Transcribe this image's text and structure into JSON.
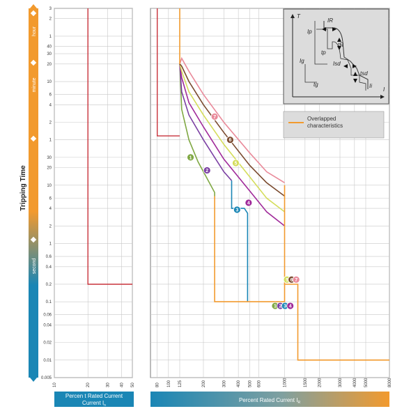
{
  "chart_data": {
    "type": "line",
    "ylabel": "Tripping Time",
    "y_scale": "log",
    "y_ticks": [
      {
        "label": "3",
        "unit": "hour"
      },
      {
        "label": "2",
        "unit": "hour"
      },
      {
        "label": "1",
        "unit": "hour"
      },
      {
        "label": "40",
        "unit": "minute"
      },
      {
        "label": "30",
        "unit": "minute"
      },
      {
        "label": "20",
        "unit": "minute"
      },
      {
        "label": "10",
        "unit": "minute"
      },
      {
        "label": "6",
        "unit": "minute"
      },
      {
        "label": "4",
        "unit": "minute"
      },
      {
        "label": "2",
        "unit": "minute"
      },
      {
        "label": "1",
        "unit": "minute"
      },
      {
        "label": "30",
        "unit": "second"
      },
      {
        "label": "20",
        "unit": "second"
      },
      {
        "label": "10",
        "unit": "second"
      },
      {
        "label": "6",
        "unit": "second"
      },
      {
        "label": "4",
        "unit": "second"
      },
      {
        "label": "2",
        "unit": "second"
      },
      {
        "label": "1",
        "unit": "second"
      },
      {
        "label": "0.6",
        "unit": "second"
      },
      {
        "label": "0.4",
        "unit": "second"
      },
      {
        "label": "0.2",
        "unit": "second"
      },
      {
        "label": "0.1",
        "unit": "second"
      },
      {
        "label": "0.06",
        "unit": "second"
      },
      {
        "label": "0.04",
        "unit": "second"
      },
      {
        "label": "0.02",
        "unit": "second"
      },
      {
        "label": "0.01",
        "unit": "second"
      },
      {
        "label": "0.005",
        "unit": "second"
      }
    ],
    "time_bands": [
      {
        "label": "hour",
        "color": "#f29a2e"
      },
      {
        "label": "minute",
        "color": "#f29a2e"
      },
      {
        "label": "second",
        "color": "#1a86b5"
      }
    ],
    "left_panel": {
      "xlabel": "Percen t Rated Current",
      "xlabel_symbol": "In",
      "x_ticks": [
        "10",
        "20",
        "30",
        "40",
        "50"
      ],
      "xlim": [
        10,
        50
      ],
      "series": [
        {
          "color": "#c8323a",
          "points": [
            [
              20,
              10800
            ],
            [
              20,
              0.2
            ],
            [
              50,
              0.2
            ]
          ]
        }
      ]
    },
    "right_panel": {
      "xlabel": "Percent Rated Current",
      "xlabel_symbol": "IR",
      "x_ticks": [
        "80",
        "100",
        "125",
        "200",
        "300",
        "400",
        "500",
        "600",
        "1000",
        "1500",
        "2000",
        "3000",
        "4000",
        "5000",
        "8000"
      ],
      "xlim": [
        70,
        8000
      ],
      "series": [
        {
          "id": "1",
          "color": "#7fa843",
          "points": [
            [
              125,
              1200
            ],
            [
              130,
              200
            ],
            [
              150,
              60
            ],
            [
              180,
              25
            ],
            [
              220,
              12
            ],
            [
              250,
              7.5
            ],
            [
              250,
              6.5
            ]
          ]
        },
        {
          "id": "2",
          "color": "#7b3fa3",
          "points": [
            [
              125,
              1200
            ],
            [
              130,
              400
            ],
            [
              150,
              160
            ],
            [
              200,
              60
            ],
            [
              250,
              30
            ],
            [
              300,
              17
            ],
            [
              350,
              12
            ]
          ]
        },
        {
          "id": "3",
          "color": "#1a86b5",
          "points": [
            [
              350,
              12
            ],
            [
              350,
              4
            ],
            [
              450,
              4
            ],
            [
              480,
              3.3
            ],
            [
              480,
              0.1
            ]
          ]
        },
        {
          "id": "4",
          "color": "#a02a9a",
          "points": [
            [
              125,
              1200
            ],
            [
              130,
              700
            ],
            [
              150,
              260
            ],
            [
              200,
              100
            ],
            [
              300,
              28
            ],
            [
              500,
              8
            ],
            [
              700,
              3.5
            ],
            [
              1000,
              2
            ]
          ]
        },
        {
          "id": "5",
          "color": "#d4dd5a",
          "points": [
            [
              125,
              1200
            ],
            [
              130,
              900
            ],
            [
              150,
              400
            ],
            [
              200,
              160
            ],
            [
              300,
              50
            ],
            [
              500,
              14
            ],
            [
              700,
              6
            ],
            [
              1000,
              3.5
            ]
          ]
        },
        {
          "id": "6",
          "color": "#7a4a2e",
          "points": [
            [
              125,
              1200
            ],
            [
              130,
              1100
            ],
            [
              150,
              600
            ],
            [
              200,
              240
            ],
            [
              300,
              80
            ],
            [
              500,
              22
            ],
            [
              700,
              11
            ],
            [
              1000,
              6.5
            ]
          ]
        },
        {
          "id": "7",
          "color": "#e98a9a",
          "points": [
            [
              125,
              1200
            ],
            [
              130,
              1500
            ],
            [
              150,
              900
            ],
            [
              200,
              360
            ],
            [
              300,
              120
            ],
            [
              500,
              36
            ],
            [
              700,
              17
            ],
            [
              1000,
              11
            ]
          ]
        }
      ],
      "red_line": {
        "color": "#c8323a",
        "points": [
          [
            80,
            10800
          ],
          [
            80,
            70
          ],
          [
            125,
            70
          ]
        ]
      },
      "orange_line": {
        "color": "#f29a2e",
        "points": [
          [
            125,
            10800
          ],
          [
            125,
            30
          ],
          [
            130,
            0.0001
          ]
        ]
      },
      "overlapped": {
        "color": "#f29a2e",
        "points": [
          [
            1000,
            10
          ],
          [
            1000,
            0.2
          ],
          [
            1300,
            0.2
          ],
          [
            1300,
            0.01
          ],
          [
            8000,
            0.01
          ]
        ]
      },
      "overlapped_b": {
        "color": "#f29a2e",
        "points": [
          [
            250,
            6.5
          ],
          [
            250,
            0.1
          ],
          [
            1000,
            0.1
          ],
          [
            1000,
            0.2
          ]
        ]
      },
      "badges": [
        {
          "id": "1",
          "x": 155,
          "y": 30,
          "color": "#7fa843"
        },
        {
          "id": "2",
          "x": 215,
          "y": 18,
          "color": "#7b3fa3"
        },
        {
          "id": "3",
          "x": 390,
          "y": 3.8,
          "color": "#1a86b5"
        },
        {
          "id": "4",
          "x": 490,
          "y": 5,
          "color": "#a02a9a"
        },
        {
          "id": "5",
          "x": 380,
          "y": 24,
          "color": "#d4dd5a"
        },
        {
          "id": "6",
          "x": 340,
          "y": 60,
          "color": "#7a4a2e"
        },
        {
          "id": "7",
          "x": 250,
          "y": 150,
          "color": "#e98a9a"
        },
        {
          "id": "5",
          "x": 1050,
          "y": 0.24,
          "color": "#d4dd5a"
        },
        {
          "id": "6",
          "x": 1150,
          "y": 0.24,
          "color": "#7a4a2e"
        },
        {
          "id": "7",
          "x": 1260,
          "y": 0.24,
          "color": "#e98a9a"
        },
        {
          "id": "1",
          "x": 830,
          "y": 0.085,
          "color": "#7fa843"
        },
        {
          "id": "2",
          "x": 920,
          "y": 0.085,
          "color": "#7b3fa3"
        },
        {
          "id": "3",
          "x": 1010,
          "y": 0.085,
          "color": "#1a86b5"
        },
        {
          "id": "4",
          "x": 1120,
          "y": 0.085,
          "color": "#a02a9a"
        }
      ]
    },
    "legend": {
      "entries": [
        {
          "label": "Overlapped\ncharacteristics",
          "color": "#f29a2e"
        }
      ],
      "position": "top-right"
    },
    "inset": {
      "labels": [
        "T",
        "I",
        "IR",
        "tR",
        "Ip",
        "tp",
        "Ig",
        "tg",
        "Isd",
        "tsd",
        "Ii"
      ]
    }
  }
}
